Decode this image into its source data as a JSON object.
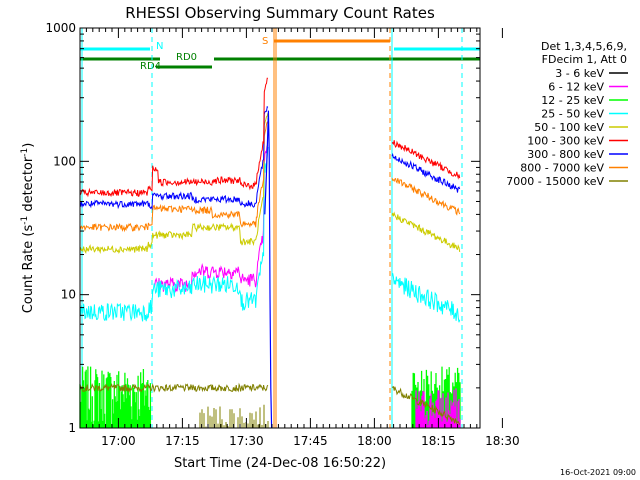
{
  "chart_data": {
    "type": "line",
    "title": "RHESSI Observing Summary Count Rates",
    "xlabel": "Start Time (24-Dec-08 16:50:22)",
    "ylabel_parts": [
      "Count Rate (s",
      "-1",
      " detector",
      "-1",
      ")"
    ],
    "xlim": [
      0,
      100
    ],
    "ylim": [
      1,
      1000
    ],
    "yscale": "log",
    "y_ticks": [
      {
        "v": 1,
        "label": "1"
      },
      {
        "v": 10,
        "label": "10"
      },
      {
        "v": 100,
        "label": "100"
      },
      {
        "v": 1000,
        "label": "1000"
      }
    ],
    "x_ticks": [
      {
        "t": 9.6,
        "label": "17:00"
      },
      {
        "t": 25.6,
        "label": "17:15"
      },
      {
        "t": 41.6,
        "label": "17:30"
      },
      {
        "t": 57.6,
        "label": "17:45"
      },
      {
        "t": 73.6,
        "label": "18:00"
      },
      {
        "t": 89.6,
        "label": "18:15"
      },
      {
        "t": 105.6,
        "label": "18:30"
      }
    ],
    "legend_header": [
      "Det 1,3,4,5,6,9,",
      "FDecim 1, Att 0"
    ],
    "series": [
      {
        "name": "3 - 6 keV",
        "color": "#000000"
      },
      {
        "name": "6 - 12 keV",
        "color": "#ff00ff"
      },
      {
        "name": "12 - 25 keV",
        "color": "#00ff00"
      },
      {
        "name": "25 - 50 keV",
        "color": "#00ffff"
      },
      {
        "name": "50 - 100 keV",
        "color": "#cccc00"
      },
      {
        "name": "100 - 300 keV",
        "color": "#ff0000"
      },
      {
        "name": "300 - 800 keV",
        "color": "#0000ff"
      },
      {
        "name": "800 - 7000 keV",
        "color": "#ff8000"
      },
      {
        "name": "7000 - 15000 keV",
        "color": "#808000"
      }
    ],
    "flags": [
      {
        "label": "N",
        "color": "#00ffff"
      },
      {
        "label": "RD0",
        "color": "#008000"
      },
      {
        "label": "RD4",
        "color": "#008000"
      },
      {
        "label": "S",
        "color": "#ff8000"
      }
    ],
    "footer": "16-Oct-2021 09:00"
  }
}
